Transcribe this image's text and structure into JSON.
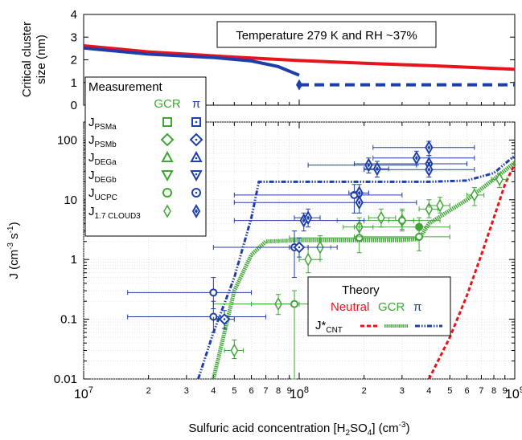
{
  "annotation": "Temperature 279 K and RH ~37%",
  "colors": {
    "neutral": "#e8141c",
    "gcr": "#3fa535",
    "pi": "#1f3fa8",
    "axis": "#000000"
  },
  "top_axis": {
    "ylabel_line1": "Critical cluster",
    "ylabel_line2": "size (nm)",
    "ticks": [
      "0",
      "1",
      "2",
      "3",
      "4"
    ]
  },
  "bottom_axis": {
    "ylabel_main": "J (cm",
    "ylabel_sup1": "-3",
    "ylabel_mid": " s",
    "ylabel_sup2": "-1",
    "ylabel_end": ")",
    "yticks": [
      "0.01",
      "0.1",
      "1",
      "10",
      "100"
    ],
    "xlabel_pre": "Sulfuric acid concentration [H",
    "xlabel_sub": "2",
    "xlabel_mid": "SO",
    "xlabel_sub2": "4",
    "xlabel_post": "] (cm",
    "xlabel_sup": "-3",
    "xlabel_end": ")",
    "xtick_major_base": "10",
    "xtick_major_exps": [
      "7",
      "8",
      "9"
    ],
    "xtick_minor_labels": [
      "2",
      "3",
      "4",
      "5",
      "6",
      "7",
      "8",
      "9",
      "2",
      "3",
      "4",
      "5",
      "6",
      "7",
      "8",
      "9"
    ]
  },
  "legend_measurement": {
    "title": "Measurement",
    "col_gcr": "GCR",
    "col_pi": "π",
    "rows": [
      {
        "main": "J",
        "sub": "PSMa"
      },
      {
        "main": "J",
        "sub": "PSMb"
      },
      {
        "main": "J",
        "sub": "DEGa"
      },
      {
        "main": "J",
        "sub": "DEGb"
      },
      {
        "main": "J",
        "sub": "UCPC"
      },
      {
        "main": "J",
        "sub": "1.7 CLOUD3"
      }
    ]
  },
  "legend_theory": {
    "title": "Theory",
    "neutral": "Neutral",
    "gcr": "GCR",
    "pi": "π",
    "row_main": "J*",
    "row_sub": "CNT"
  },
  "chart_data": [
    {
      "type": "line",
      "panel": "top",
      "ylabel": "Critical cluster size (nm)",
      "ylim": [
        0,
        4
      ],
      "xscale": "log",
      "xlim": [
        10000000.0,
        1000000000.0
      ],
      "series": [
        {
          "color": "#e8141c",
          "style": "solid",
          "x": [
            10000000.0,
            20000000.0,
            50000000.0,
            100000000.0,
            200000000.0,
            500000000.0,
            1000000000.0
          ],
          "y": [
            2.62,
            2.35,
            2.12,
            1.97,
            1.85,
            1.71,
            1.58
          ]
        },
        {
          "color": "#1f3fa8",
          "style": "solid",
          "x": [
            10000000.0,
            20000000.0,
            40000000.0,
            60000000.0,
            80000000.0,
            100000000.0
          ],
          "y": [
            2.52,
            2.25,
            2.1,
            1.95,
            1.7,
            1.32
          ]
        },
        {
          "color": "#1f3fa8",
          "style": "dashed",
          "x": [
            100000000.0,
            110000000.0,
            1000000000.0
          ],
          "y": [
            0.9,
            0.9,
            0.9
          ]
        },
        {
          "color": "#1f3fa8",
          "style": "marker",
          "x": [
            100000000.0
          ],
          "y": [
            0.9
          ]
        }
      ]
    },
    {
      "type": "scatter",
      "panel": "bottom",
      "xlabel": "Sulfuric acid concentration [H2SO4] (cm-3)",
      "ylabel": "J (cm-3 s-1)",
      "xscale": "log",
      "yscale": "log",
      "xlim": [
        10000000.0,
        1000000000.0
      ],
      "ylim": [
        0.01,
        200
      ],
      "theory": [
        {
          "color": "#e8141c",
          "style": "dashed",
          "x": [
            400000000.0,
            500000000.0,
            600000000.0,
            700000000.0,
            800000000.0,
            900000000.0,
            1000000000.0
          ],
          "y": [
            0.01,
            0.05,
            0.25,
            1.2,
            5,
            18,
            40
          ]
        },
        {
          "color": "#3fa535",
          "style": "dotted-thick",
          "x": [
            40000000.0,
            50000000.0,
            60000000.0,
            70000000.0,
            100000000.0,
            200000000.0,
            300000000.0,
            360000000.0,
            400000000.0,
            600000000.0,
            800000000.0,
            1000000000.0
          ],
          "y": [
            0.01,
            0.3,
            1.2,
            2.0,
            2.1,
            2.1,
            2.1,
            2.2,
            4.0,
            10,
            22,
            42
          ]
        },
        {
          "color": "#1f3fa8",
          "style": "dash-dot",
          "x": [
            34000000.0,
            40000000.0,
            50000000.0,
            60000000.0,
            65000000.0,
            100000000.0,
            200000000.0,
            400000000.0,
            600000000.0,
            800000000.0,
            900000000.0,
            1000000000.0
          ],
          "y": [
            0.01,
            0.06,
            0.5,
            5,
            20,
            20,
            20,
            20,
            21,
            28,
            40,
            55
          ]
        }
      ],
      "measurements": [
        {
          "group": "GCR",
          "marker": "thin-diamond",
          "x": 50000000.0,
          "y": 0.03,
          "xerr": [
            45000000.0,
            55000000.0
          ],
          "yerr": [
            0.022,
            0.045
          ]
        },
        {
          "group": "GCR",
          "marker": "thin-diamond",
          "x": 80000000.0,
          "y": 0.18,
          "xerr": [
            60000000.0,
            100000000.0
          ],
          "yerr": [
            0.12,
            0.26
          ]
        },
        {
          "group": "GCR",
          "marker": "circle",
          "x": 95000000.0,
          "y": 0.18,
          "xerr": [
            40000000.0,
            190000000.0
          ],
          "yerr": [
            0.01,
            0.3
          ]
        },
        {
          "group": "GCR",
          "marker": "thin-diamond",
          "x": 110000000.0,
          "y": 1.0,
          "xerr": [
            100000000.0,
            125000000.0
          ],
          "yerr": [
            0.6,
            1.6
          ]
        },
        {
          "group": "GCR",
          "marker": "thin-diamond",
          "x": 125000000.0,
          "y": 1.6,
          "xerr": [
            110000000.0,
            140000000.0
          ],
          "yerr": [
            1.0,
            2.5
          ]
        },
        {
          "group": "GCR",
          "marker": "thin-diamond",
          "x": 190000000.0,
          "y": 3.5,
          "xerr": [
            160000000.0,
            220000000.0
          ],
          "yerr": [
            2.2,
            5
          ]
        },
        {
          "group": "GCR",
          "marker": "circle",
          "x": 190000000.0,
          "y": 2.3,
          "xerr": [
            90000000.0,
            360000000.0
          ],
          "yerr": [
            1.3,
            4
          ]
        },
        {
          "group": "GCR",
          "marker": "thin-diamond",
          "x": 240000000.0,
          "y": 5.0,
          "xerr": [
            210000000.0,
            280000000.0
          ],
          "yerr": [
            3.5,
            7
          ]
        },
        {
          "group": "GCR",
          "marker": "thin-diamond",
          "x": 300000000.0,
          "y": 4.5,
          "xerr": [
            260000000.0,
            340000000.0
          ],
          "yerr": [
            3.2,
            6.5
          ]
        },
        {
          "group": "GCR",
          "marker": "circle",
          "x": 300000000.0,
          "y": 4.5,
          "xerr": [
            150000000.0,
            450000000.0
          ],
          "yerr": [
            3,
            7
          ]
        },
        {
          "group": "GCR",
          "marker": "filled-circle",
          "x": 360000000.0,
          "y": 3.5,
          "xerr": [
            180000000.0,
            500000000.0
          ],
          "yerr": [
            2.3,
            5
          ]
        },
        {
          "group": "GCR",
          "marker": "circle",
          "x": 360000000.0,
          "y": 2.4,
          "xerr": [
            180000000.0,
            500000000.0
          ],
          "yerr": [
            1.4,
            3.8
          ]
        },
        {
          "group": "GCR",
          "marker": "thin-diamond",
          "x": 400000000.0,
          "y": 7.0,
          "xerr": [
            360000000.0,
            440000000.0
          ],
          "yerr": [
            5,
            10
          ]
        },
        {
          "group": "GCR",
          "marker": "thin-diamond",
          "x": 450000000.0,
          "y": 8.0,
          "xerr": [
            400000000.0,
            500000000.0
          ],
          "yerr": [
            6,
            11
          ]
        },
        {
          "group": "GCR",
          "marker": "thin-diamond",
          "x": 650000000.0,
          "y": 12.0,
          "xerr": [
            600000000.0,
            720000000.0
          ],
          "yerr": [
            8,
            16
          ]
        },
        {
          "group": "GCR",
          "marker": "thin-diamond",
          "x": 850000000.0,
          "y": 22.0,
          "xerr": [
            780000000.0,
            920000000.0
          ],
          "yerr": [
            16,
            28
          ]
        },
        {
          "group": "pi",
          "marker": "circle",
          "x": 40000000.0,
          "y": 0.28,
          "xerr": [
            16000000.0,
            60000000.0
          ],
          "yerr": [
            0.15,
            0.5
          ]
        },
        {
          "group": "pi",
          "marker": "circle",
          "x": 40000000.0,
          "y": 0.11,
          "xerr": [
            16000000.0,
            70000000.0
          ],
          "yerr": [
            0.06,
            0.2
          ]
        },
        {
          "group": "pi",
          "marker": "diamond",
          "x": 45000000.0,
          "y": 0.1,
          "xerr": [
            40000000.0,
            50000000.0
          ],
          "yerr": [
            0.07,
            0.14
          ]
        },
        {
          "group": "pi",
          "marker": "circle",
          "x": 95000000.0,
          "y": 1.6,
          "xerr": [
            40000000.0,
            150000000.0
          ],
          "yerr": [
            0.5,
            3
          ]
        },
        {
          "group": "pi",
          "marker": "diamond",
          "x": 100000000.0,
          "y": 1.6,
          "xerr": [
            90000000.0,
            110000000.0
          ],
          "yerr": [
            1.1,
            2.3
          ]
        },
        {
          "group": "pi",
          "marker": "filled-diamond",
          "x": 105000000.0,
          "y": 4.5,
          "xerr": [
            50000000.0,
            200000000.0
          ],
          "yerr": [
            3,
            6
          ]
        },
        {
          "group": "pi",
          "marker": "filled-diamond",
          "x": 110000000.0,
          "y": 5.0,
          "xerr": [
            95000000.0,
            125000000.0
          ],
          "yerr": [
            3.5,
            7
          ]
        },
        {
          "group": "pi",
          "marker": "circle",
          "x": 180000000.0,
          "y": 12.0,
          "xerr": [
            50000000.0,
            300000000.0
          ],
          "yerr": [
            6,
            18
          ]
        },
        {
          "group": "pi",
          "marker": "filled-diamond",
          "x": 190000000.0,
          "y": 13.0,
          "xerr": [
            170000000.0,
            210000000.0
          ],
          "yerr": [
            9,
            18
          ]
        },
        {
          "group": "pi",
          "marker": "filled-diamond",
          "x": 190000000.0,
          "y": 9.0,
          "xerr": [
            50000000.0,
            350000000.0
          ],
          "yerr": [
            6,
            13
          ]
        },
        {
          "group": "pi",
          "marker": "filled-diamond",
          "x": 210000000.0,
          "y": 38.0,
          "xerr": [
            110000000.0,
            350000000.0
          ],
          "yerr": [
            28,
            50
          ]
        },
        {
          "group": "pi",
          "marker": "filled-diamond",
          "x": 230000000.0,
          "y": 33.0,
          "xerr": [
            200000000.0,
            260000000.0
          ],
          "yerr": [
            24,
            44
          ]
        },
        {
          "group": "pi",
          "marker": "filled-diamond",
          "x": 350000000.0,
          "y": 50.0,
          "xerr": [
            220000000.0,
            650000000.0
          ],
          "yerr": [
            38,
            65
          ]
        },
        {
          "group": "pi",
          "marker": "filled-diamond",
          "x": 400000000.0,
          "y": 75.0,
          "xerr": [
            220000000.0,
            650000000.0
          ],
          "yerr": [
            55,
            95
          ]
        },
        {
          "group": "pi",
          "marker": "filled-diamond",
          "x": 400000000.0,
          "y": 40.0,
          "xerr": [
            180000000.0,
            600000000.0
          ],
          "yerr": [
            28,
            55
          ]
        },
        {
          "group": "pi",
          "marker": "filled-diamond",
          "x": 400000000.0,
          "y": 32.0,
          "xerr": [
            200000000.0,
            650000000.0
          ],
          "yerr": [
            24,
            42
          ]
        }
      ]
    }
  ]
}
